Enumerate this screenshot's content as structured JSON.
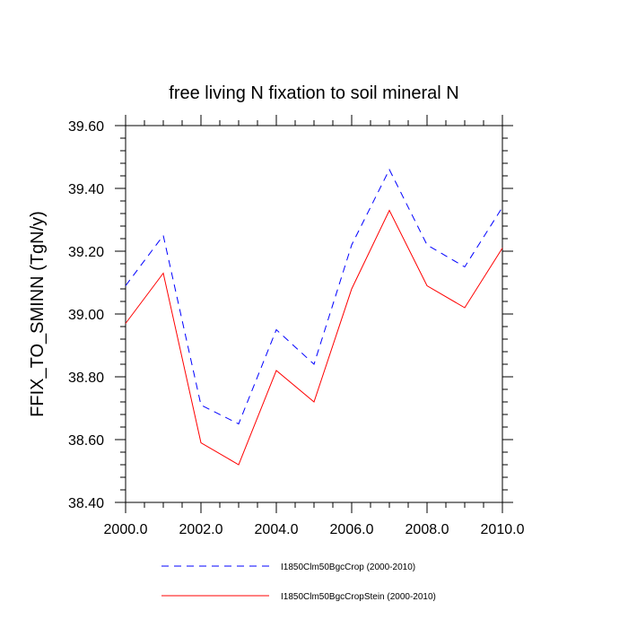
{
  "chart_data": {
    "type": "line",
    "title": "free living N fixation to soil mineral N",
    "xlabel": "",
    "ylabel": "FFIX_TO_SMINN  (TgN/y)",
    "xlim": [
      2000,
      2010
    ],
    "ylim": [
      38.4,
      39.6
    ],
    "x_ticks": [
      2000,
      2002,
      2004,
      2006,
      2008,
      2010
    ],
    "x_tick_labels": [
      "2000.0",
      "2002.0",
      "2004.0",
      "2006.0",
      "2008.0",
      "2010.0"
    ],
    "y_ticks": [
      38.4,
      38.6,
      38.8,
      39.0,
      39.2,
      39.4,
      39.6
    ],
    "y_tick_labels": [
      "38.40",
      "38.60",
      "38.80",
      "39.00",
      "39.20",
      "39.40",
      "39.60"
    ],
    "grid": false,
    "legend_position": "bottom",
    "x": [
      2000,
      2001,
      2002,
      2003,
      2004,
      2005,
      2006,
      2007,
      2008,
      2009,
      2010
    ],
    "series": [
      {
        "name": "I1850Clm50BgcCrop (2000-2010)",
        "color": "#0000ff",
        "dash": "dashed",
        "values": [
          39.09,
          39.25,
          38.71,
          38.65,
          38.95,
          38.84,
          39.22,
          39.46,
          39.22,
          39.15,
          39.34
        ]
      },
      {
        "name": "I1850Clm50BgcCropStein (2000-2010)",
        "color": "#ff0000",
        "dash": "solid",
        "values": [
          38.97,
          39.13,
          38.59,
          38.52,
          38.82,
          38.72,
          39.08,
          39.33,
          39.09,
          39.02,
          39.21
        ]
      }
    ]
  }
}
